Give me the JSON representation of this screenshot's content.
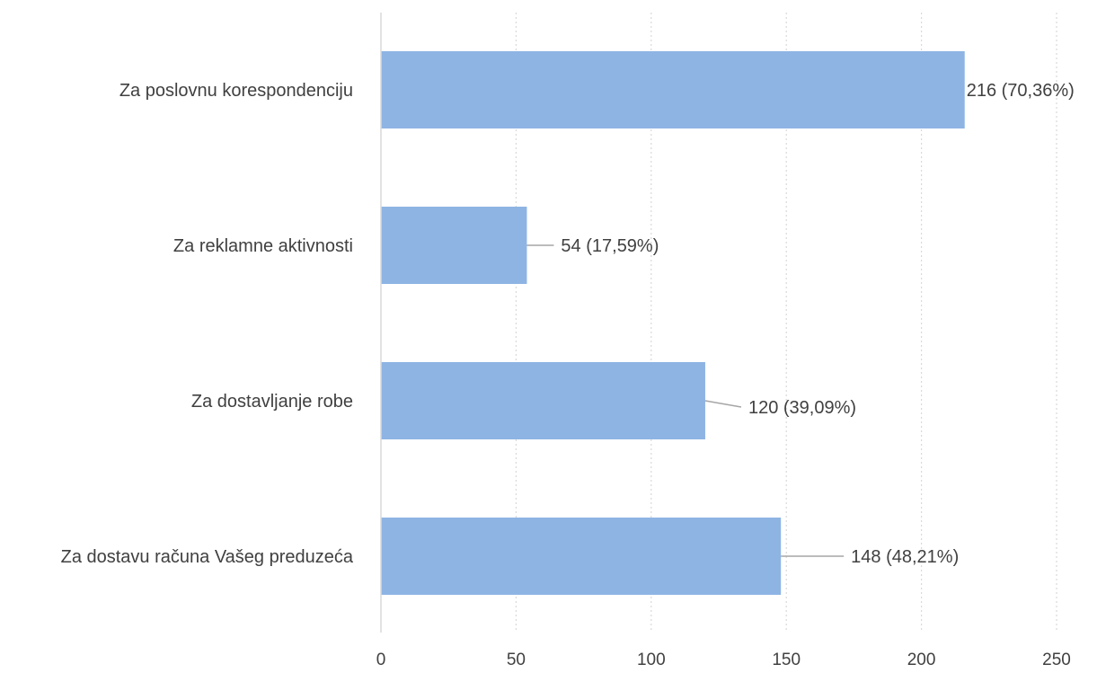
{
  "chart_data": {
    "type": "bar",
    "orientation": "horizontal",
    "categories": [
      "Za poslovnu korespondenciju",
      "Za reklamne aktivnosti",
      "Za dostavljanje robe",
      "Za dostavu računa Vašeg preduzeća"
    ],
    "values": [
      216,
      54,
      120,
      148
    ],
    "data_labels": [
      "216 (70,36%)",
      "54 (17,59%)",
      "120 (39,09%)",
      "148 (48,21%)"
    ],
    "x_ticks": [
      "0",
      "50",
      "100",
      "150",
      "200",
      "250"
    ],
    "xlim": [
      0,
      250
    ],
    "title": "",
    "xlabel": "",
    "ylabel": "",
    "grid": "vertical-dotted",
    "legend": "none",
    "colors": {
      "bar": "#8EB4E3",
      "text": "#404040",
      "grid": "#D9D9D9",
      "axis": "#D9D9D9",
      "leader": "#A6A6A6"
    }
  }
}
